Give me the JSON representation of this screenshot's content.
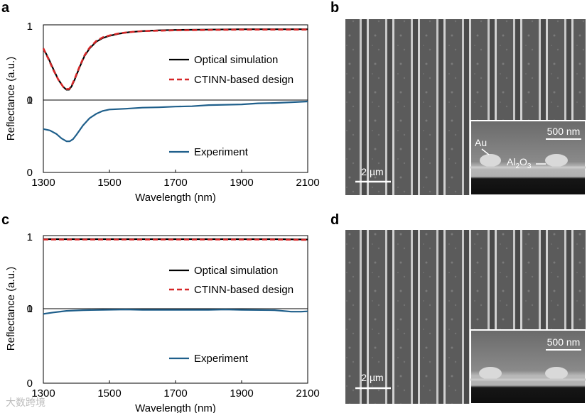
{
  "panel_labels": [
    "a",
    "b",
    "c",
    "d"
  ],
  "chart_data": [
    {
      "type": "line",
      "panel": "a",
      "xlabel": "Wavelength (nm)",
      "ylabel": "Reflectance (a.u.)",
      "xlim": [
        1300,
        2100
      ],
      "xticks": [
        "1300",
        "1500",
        "1700",
        "1900",
        "2100"
      ],
      "subplots": [
        {
          "ylim": [
            0,
            1
          ],
          "yticks": [
            "0",
            "1"
          ],
          "series": [
            {
              "name": "Optical simulation",
              "color": "#000000",
              "dash": "solid",
              "x": [
                1300,
                1315,
                1330,
                1345,
                1360,
                1370,
                1378,
                1386,
                1395,
                1410,
                1425,
                1440,
                1460,
                1480,
                1500,
                1530,
                1560,
                1600,
                1650,
                1700,
                1800,
                1900,
                2000,
                2100
              ],
              "y": [
                0.7,
                0.57,
                0.42,
                0.28,
                0.18,
                0.14,
                0.14,
                0.19,
                0.28,
                0.45,
                0.6,
                0.7,
                0.79,
                0.84,
                0.87,
                0.9,
                0.92,
                0.935,
                0.945,
                0.95,
                0.955,
                0.96,
                0.96,
                0.96
              ]
            },
            {
              "name": "CTINN-based design",
              "color": "#d62728",
              "dash": "dashed",
              "x": [
                1300,
                1315,
                1330,
                1345,
                1360,
                1370,
                1378,
                1386,
                1395,
                1410,
                1425,
                1440,
                1460,
                1480,
                1500,
                1530,
                1560,
                1600,
                1650,
                1700,
                1800,
                1900,
                2000,
                2100
              ],
              "y": [
                0.7,
                0.56,
                0.41,
                0.28,
                0.18,
                0.15,
                0.15,
                0.2,
                0.29,
                0.46,
                0.61,
                0.71,
                0.8,
                0.85,
                0.875,
                0.905,
                0.92,
                0.935,
                0.94,
                0.945,
                0.95,
                0.955,
                0.955,
                0.955
              ]
            }
          ]
        },
        {
          "ylim": [
            0,
            1
          ],
          "yticks": [
            "0",
            "1"
          ],
          "series": [
            {
              "name": "Experiment",
              "color": "#1f5f8b",
              "dash": "solid",
              "x": [
                1300,
                1320,
                1340,
                1355,
                1370,
                1380,
                1390,
                1400,
                1420,
                1440,
                1460,
                1480,
                1500,
                1550,
                1600,
                1650,
                1700,
                1750,
                1800,
                1850,
                1900,
                1950,
                2000,
                2050,
                2100
              ],
              "y": [
                0.6,
                0.58,
                0.53,
                0.47,
                0.43,
                0.43,
                0.46,
                0.52,
                0.65,
                0.75,
                0.81,
                0.85,
                0.87,
                0.88,
                0.895,
                0.9,
                0.91,
                0.915,
                0.93,
                0.935,
                0.94,
                0.955,
                0.96,
                0.97,
                0.98
              ]
            }
          ]
        }
      ]
    },
    {
      "type": "line",
      "panel": "c",
      "xlabel": "Wavelength (nm)",
      "ylabel": "Reflectance (a.u.)",
      "xlim": [
        1300,
        2100
      ],
      "xticks": [
        "1300",
        "1500",
        "1700",
        "1900",
        "2100"
      ],
      "subplots": [
        {
          "ylim": [
            0,
            1
          ],
          "yticks": [
            "0",
            "1"
          ],
          "series": [
            {
              "name": "Optical simulation",
              "color": "#000000",
              "dash": "solid",
              "x": [
                1300,
                1400,
                1500,
                1600,
                1700,
                1800,
                1900,
                2000,
                2100
              ],
              "y": [
                0.97,
                0.97,
                0.97,
                0.97,
                0.97,
                0.97,
                0.97,
                0.97,
                0.965
              ]
            },
            {
              "name": "CTINN-based design",
              "color": "#d62728",
              "dash": "dashed",
              "x": [
                1300,
                1400,
                1500,
                1600,
                1700,
                1800,
                1900,
                2000,
                2100
              ],
              "y": [
                0.965,
                0.965,
                0.965,
                0.965,
                0.965,
                0.965,
                0.965,
                0.965,
                0.96
              ]
            }
          ]
        },
        {
          "ylim": [
            0,
            1
          ],
          "yticks": [
            "0",
            "1"
          ],
          "series": [
            {
              "name": "Experiment",
              "color": "#1f5f8b",
              "dash": "solid",
              "x": [
                1300,
                1330,
                1370,
                1420,
                1480,
                1550,
                1600,
                1700,
                1800,
                1850,
                1900,
                2000,
                2050,
                2080,
                2100
              ],
              "y": [
                0.93,
                0.95,
                0.97,
                0.98,
                0.985,
                0.99,
                0.985,
                0.985,
                0.985,
                0.99,
                0.985,
                0.98,
                0.96,
                0.96,
                0.965
              ]
            }
          ]
        }
      ]
    }
  ],
  "sem_images": [
    {
      "panel": "b",
      "scale_bar": "2 µm",
      "inset_scale_bar": "500 nm",
      "labels": [
        "Au",
        "Al2O3"
      ]
    },
    {
      "panel": "d",
      "scale_bar": "2 µm",
      "inset_scale_bar": "500 nm",
      "labels": []
    }
  ],
  "colors": {
    "simulation": "#000000",
    "design": "#d62728",
    "experiment": "#1f5f8b",
    "sem_bg": "#5e5e5e"
  },
  "watermark": "大数跨境"
}
